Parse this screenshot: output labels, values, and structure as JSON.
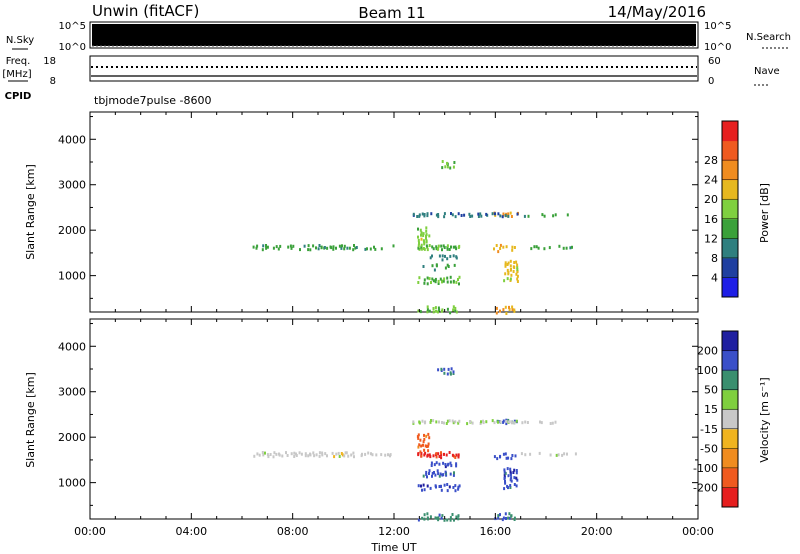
{
  "header": {
    "title": "Unwin (fitACF)",
    "beam": "Beam 11",
    "date": "14/May/2016"
  },
  "noise_panel": {
    "left_label": "N.Sky",
    "right_label": "N.Search",
    "left_ticks": [
      "10^5",
      "10^0"
    ],
    "right_ticks": [
      "10^5",
      "10^0"
    ]
  },
  "freq_panel": {
    "left_label_1": "Freq.",
    "left_label_2": "[MHz]",
    "right_label": "Nave",
    "left_ticks": [
      "18",
      "8"
    ],
    "right_ticks": [
      "60",
      "0"
    ],
    "cpid_label": "CPID",
    "cpid_value": "tbjmode7pulse -8600"
  },
  "colors": {
    "power_scale": [
      "#1f1fe6",
      "#1f3fa0",
      "#2f7f7f",
      "#3aa13a",
      "#7fcf3f",
      "#e6b81f",
      "#f08c1f",
      "#f05a1f",
      "#e61f1f"
    ],
    "velocity_scale": [
      "#e61f1f",
      "#f05a1f",
      "#f08c1f",
      "#f0b41f",
      "#c8c8c8",
      "#7fcf3f",
      "#3a8f6f",
      "#3a4fc8",
      "#1f1fa0"
    ]
  },
  "chart_data": [
    {
      "type": "heatmap",
      "name": "power",
      "ylabel": "Slant Range [km]",
      "ylim": [
        200,
        4600
      ],
      "yticks": [
        1000,
        2000,
        3000,
        4000
      ],
      "xlim": [
        0,
        24
      ],
      "xticks": [
        "00:00",
        "04:00",
        "08:00",
        "12:00",
        "16:00",
        "20:00",
        "00:00"
      ],
      "colorbar": {
        "label": "Power [dB]",
        "range": [
          0,
          32
        ],
        "ticks": [
          "4",
          "8",
          "12",
          "16",
          "20",
          "24",
          "28"
        ]
      },
      "bands": [
        {
          "t0": 6.4,
          "t1": 12.0,
          "r0": 1600,
          "r1": 1700,
          "v": 12
        },
        {
          "t0": 12.9,
          "t1": 14.6,
          "r0": 1580,
          "r1": 1700,
          "v": 14
        },
        {
          "t0": 12.9,
          "t1": 13.4,
          "r0": 1700,
          "r1": 2100,
          "v": 16
        },
        {
          "t0": 12.9,
          "t1": 14.6,
          "r0": 200,
          "r1": 350,
          "v": 15
        },
        {
          "t0": 12.9,
          "t1": 14.6,
          "r0": 850,
          "r1": 1000,
          "v": 14
        },
        {
          "t0": 13.1,
          "t1": 14.4,
          "r0": 1150,
          "r1": 1300,
          "v": 12
        },
        {
          "t0": 13.4,
          "t1": 14.5,
          "r0": 1380,
          "r1": 1480,
          "v": 9
        },
        {
          "t0": 13.7,
          "t1": 14.4,
          "r0": 3400,
          "r1": 3550,
          "v": 14
        },
        {
          "t0": 15.9,
          "t1": 16.8,
          "r0": 1560,
          "r1": 1700,
          "v": 20
        },
        {
          "t0": 15.9,
          "t1": 16.9,
          "r0": 2330,
          "r1": 2420,
          "v": 21
        },
        {
          "t0": 15.9,
          "t1": 16.8,
          "r0": 200,
          "r1": 350,
          "v": 21
        },
        {
          "t0": 16.3,
          "t1": 16.9,
          "r0": 900,
          "r1": 1350,
          "v": 19
        },
        {
          "t0": 12.6,
          "t1": 16.9,
          "r0": 2330,
          "r1": 2400,
          "v": 8
        },
        {
          "t0": 16.9,
          "t1": 19.0,
          "r0": 2330,
          "r1": 2380,
          "v": 12
        },
        {
          "t0": 17.0,
          "t1": 19.2,
          "r0": 1620,
          "r1": 1680,
          "v": 12
        }
      ]
    },
    {
      "type": "heatmap",
      "name": "velocity",
      "ylabel": "Slant Range [km]",
      "ylim": [
        200,
        4600
      ],
      "yticks": [
        1000,
        2000,
        3000,
        4000
      ],
      "xlim": [
        0,
        24
      ],
      "xticks": [
        "00:00",
        "04:00",
        "08:00",
        "12:00",
        "16:00",
        "20:00",
        "00:00"
      ],
      "xlabel": "Time UT",
      "colorbar": {
        "label": "Velocity [m s⁻¹]",
        "range": [
          -300,
          300
        ],
        "ticks": [
          "200",
          "100",
          "50",
          "15",
          "-15",
          "-50",
          "-100",
          "-200"
        ]
      },
      "bands": [
        {
          "t0": 6.4,
          "t1": 12.0,
          "r0": 1600,
          "r1": 1700,
          "v": 0
        },
        {
          "t0": 12.9,
          "t1": 14.6,
          "r0": 1580,
          "r1": 1700,
          "v": -250
        },
        {
          "t0": 12.9,
          "t1": 13.4,
          "r0": 1700,
          "r1": 2100,
          "v": -200
        },
        {
          "t0": 12.9,
          "t1": 14.6,
          "r0": 200,
          "r1": 350,
          "v": 150
        },
        {
          "t0": 12.9,
          "t1": 14.6,
          "r0": 850,
          "r1": 1000,
          "v": 220
        },
        {
          "t0": 13.1,
          "t1": 14.4,
          "r0": 1150,
          "r1": 1300,
          "v": 180
        },
        {
          "t0": 13.4,
          "t1": 14.5,
          "r0": 1380,
          "r1": 1480,
          "v": 200
        },
        {
          "t0": 13.7,
          "t1": 14.4,
          "r0": 3400,
          "r1": 3550,
          "v": 180
        },
        {
          "t0": 15.9,
          "t1": 16.8,
          "r0": 1560,
          "r1": 1700,
          "v": 200
        },
        {
          "t0": 15.9,
          "t1": 16.9,
          "r0": 2330,
          "r1": 2420,
          "v": 180
        },
        {
          "t0": 15.9,
          "t1": 16.8,
          "r0": 200,
          "r1": 350,
          "v": 160
        },
        {
          "t0": 16.3,
          "t1": 16.9,
          "r0": 900,
          "r1": 1350,
          "v": 200
        },
        {
          "t0": 12.6,
          "t1": 16.9,
          "r0": 2330,
          "r1": 2400,
          "v": 30
        },
        {
          "t0": 16.9,
          "t1": 19.0,
          "r0": 2330,
          "r1": 2380,
          "v": 0
        },
        {
          "t0": 17.0,
          "t1": 19.2,
          "r0": 1620,
          "r1": 1680,
          "v": 0
        }
      ]
    }
  ]
}
